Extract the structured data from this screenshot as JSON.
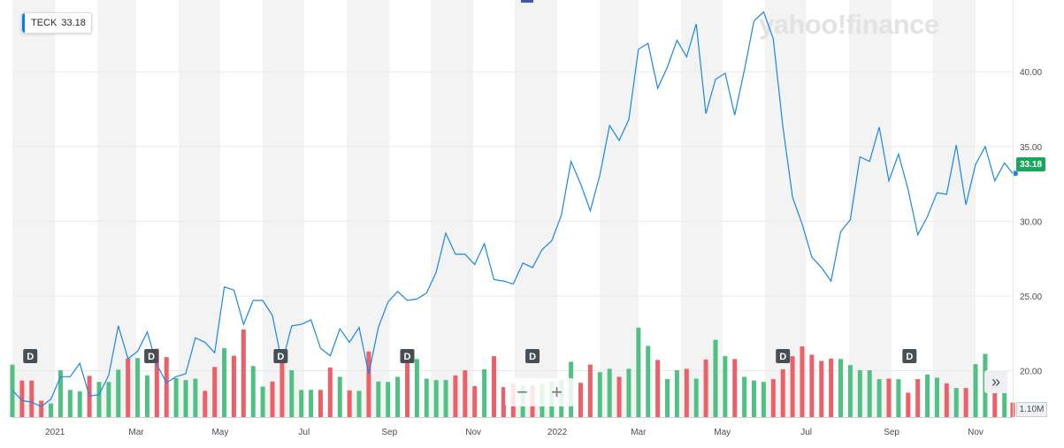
{
  "ticker": {
    "symbol": "TECK",
    "price": "33.18"
  },
  "watermark": "yahoo!finance",
  "current_price_label": "33.18",
  "volume_label": "1.10M",
  "zoom": {
    "minus": "−",
    "plus": "+"
  },
  "expand_icon": "»",
  "dividend_marker": "D",
  "colors": {
    "line": "#1a87e8",
    "vol_up": "#4fc183",
    "vol_down": "#ee6068",
    "flag": "#1aa65c",
    "band": "#f3f3f3"
  },
  "chart_data": {
    "type": "line",
    "title": "",
    "x_tick_labels": [
      "2021",
      "Mar",
      "May",
      "Jul",
      "Sep",
      "Nov",
      "2022",
      "Mar",
      "May",
      "Jul",
      "Sep",
      "Nov"
    ],
    "y_ticks": [
      20.0,
      25.0,
      30.0,
      35.0,
      40.0
    ],
    "y_tick_labels": [
      "20.00",
      "25.00",
      "30.00",
      "35.00",
      "40.00"
    ],
    "ylim": [
      16.9,
      44.8
    ],
    "x_range": [
      "2020-12-01",
      "2022-11-28"
    ],
    "price_series": {
      "name": "TECK",
      "x": [
        "2020-12-01",
        "2020-12-08",
        "2020-12-15",
        "2020-12-22",
        "2020-12-29",
        "2021-01-05",
        "2021-01-12",
        "2021-01-19",
        "2021-01-26",
        "2021-02-02",
        "2021-02-09",
        "2021-02-16",
        "2021-02-23",
        "2021-03-02",
        "2021-03-09",
        "2021-03-16",
        "2021-03-23",
        "2021-03-30",
        "2021-04-06",
        "2021-04-13",
        "2021-04-20",
        "2021-04-27",
        "2021-05-04",
        "2021-05-11",
        "2021-05-18",
        "2021-05-25",
        "2021-06-01",
        "2021-06-08",
        "2021-06-15",
        "2021-06-22",
        "2021-06-29",
        "2021-07-06",
        "2021-07-13",
        "2021-07-20",
        "2021-07-27",
        "2021-08-03",
        "2021-08-10",
        "2021-08-17",
        "2021-08-24",
        "2021-08-31",
        "2021-09-07",
        "2021-09-14",
        "2021-09-21",
        "2021-09-28",
        "2021-10-05",
        "2021-10-12",
        "2021-10-19",
        "2021-10-26",
        "2021-11-02",
        "2021-11-09",
        "2021-11-16",
        "2021-11-23",
        "2021-11-30",
        "2021-12-07",
        "2021-12-14",
        "2021-12-21",
        "2021-12-28",
        "2022-01-04",
        "2022-01-11",
        "2022-01-18",
        "2022-01-25",
        "2022-02-01",
        "2022-02-08",
        "2022-02-15",
        "2022-02-22",
        "2022-03-01",
        "2022-03-08",
        "2022-03-15",
        "2022-03-22",
        "2022-03-29",
        "2022-04-05",
        "2022-04-12",
        "2022-04-19",
        "2022-04-26",
        "2022-05-03",
        "2022-05-10",
        "2022-05-17",
        "2022-05-24",
        "2022-05-31",
        "2022-06-07",
        "2022-06-14",
        "2022-06-21",
        "2022-06-28",
        "2022-07-05",
        "2022-07-12",
        "2022-07-19",
        "2022-07-26",
        "2022-08-02",
        "2022-08-09",
        "2022-08-16",
        "2022-08-23",
        "2022-08-30",
        "2022-09-06",
        "2022-09-13",
        "2022-09-20",
        "2022-09-27",
        "2022-10-04",
        "2022-10-11",
        "2022-10-18",
        "2022-10-25",
        "2022-11-01",
        "2022-11-08",
        "2022-11-15",
        "2022-11-22",
        "2022-11-28"
      ],
      "y": [
        18.7,
        18.0,
        17.9,
        17.6,
        18.1,
        19.6,
        19.6,
        20.5,
        18.3,
        18.4,
        19.7,
        23.0,
        20.8,
        21.3,
        22.6,
        20.4,
        19.2,
        19.6,
        19.8,
        22.2,
        21.9,
        21.2,
        25.6,
        25.4,
        23.1,
        24.7,
        24.7,
        23.7,
        20.5,
        23.0,
        23.1,
        23.4,
        21.5,
        21.0,
        22.8,
        21.9,
        22.9,
        19.8,
        22.9,
        24.6,
        25.3,
        24.7,
        24.8,
        25.2,
        26.6,
        29.2,
        27.8,
        27.8,
        27.1,
        28.5,
        26.1,
        26.0,
        25.8,
        27.2,
        26.9,
        28.1,
        28.7,
        30.4,
        34.0,
        32.5,
        30.7,
        33.1,
        36.4,
        35.4,
        36.8,
        41.5,
        41.9,
        38.9,
        40.3,
        42.1,
        41.0,
        43.2,
        37.2,
        39.5,
        39.9,
        37.1,
        40.1,
        43.4,
        44.0,
        42.2,
        36.3,
        31.6,
        29.8,
        27.6,
        26.9,
        26.0,
        29.3,
        30.1,
        34.3,
        34.0,
        36.3,
        32.7,
        34.5,
        32.1,
        29.1,
        30.3,
        31.9,
        31.8,
        35.1,
        31.1,
        33.8,
        35.0,
        32.7,
        33.9,
        33.2
      ]
    },
    "volume_series": {
      "name": "Volume",
      "values": [
        11.2,
        7.8,
        7.8,
        3.5,
        2.9,
        10.0,
        5.8,
        5.5,
        8.8,
        7.5,
        7.5,
        10.1,
        12.5,
        12.6,
        8.9,
        14.6,
        12.8,
        8.3,
        7.9,
        8.2,
        5.6,
        10.7,
        14.7,
        13.1,
        18.7,
        10.9,
        6.5,
        7.6,
        12.2,
        10.0,
        5.8,
        5.8,
        5.8,
        10.6,
        8.6,
        5.7,
        5.6,
        14.0,
        7.6,
        7.5,
        8.6,
        12.0,
        12.4,
        8.2,
        7.9,
        7.9,
        8.9,
        10.0,
        6.6,
        10.2,
        13.0,
        6.4,
        7.1,
        6.8,
        6.8,
        7.1,
        7.6,
        7.9,
        11.8,
        7.3,
        11.2,
        9.6,
        10.3,
        8.6,
        10.3,
        19.1,
        15.2,
        12.2,
        8.1,
        10.0,
        10.3,
        8.2,
        12.3,
        16.5,
        13.0,
        12.4,
        8.6,
        7.8,
        7.5,
        8.1,
        10.2,
        13.0,
        15.1,
        13.3,
        12.0,
        12.5,
        12.4,
        11.1,
        10.0,
        10.0,
        8.1,
        8.2,
        8.1,
        5.2,
        8.1,
        9.1,
        8.4,
        7.2,
        6.2,
        6.2,
        11.3,
        13.5,
        5.1,
        5.1,
        3.1
      ],
      "up": [
        true,
        false,
        false,
        false,
        true,
        true,
        true,
        true,
        false,
        true,
        true,
        true,
        false,
        true,
        true,
        false,
        false,
        true,
        true,
        true,
        false,
        false,
        true,
        false,
        false,
        true,
        true,
        false,
        false,
        true,
        true,
        true,
        false,
        false,
        true,
        false,
        true,
        false,
        true,
        true,
        true,
        false,
        true,
        true,
        true,
        true,
        false,
        false,
        false,
        true,
        false,
        false,
        false,
        true,
        false,
        true,
        true,
        true,
        true,
        false,
        false,
        true,
        true,
        false,
        true,
        true,
        true,
        false,
        true,
        true,
        false,
        true,
        false,
        true,
        true,
        false,
        true,
        true,
        true,
        false,
        false,
        false,
        false,
        false,
        false,
        false,
        true,
        true,
        true,
        true,
        true,
        false,
        true,
        false,
        false,
        true,
        true,
        false,
        true,
        false,
        true,
        true,
        false,
        true,
        false
      ]
    },
    "dividend_dates": [
      "2020-12-14",
      "2021-03-12",
      "2021-06-14",
      "2021-09-14",
      "2021-12-14",
      "2022-06-14",
      "2022-09-14"
    ],
    "grid": true,
    "volume_axis_label": "1.10M"
  }
}
